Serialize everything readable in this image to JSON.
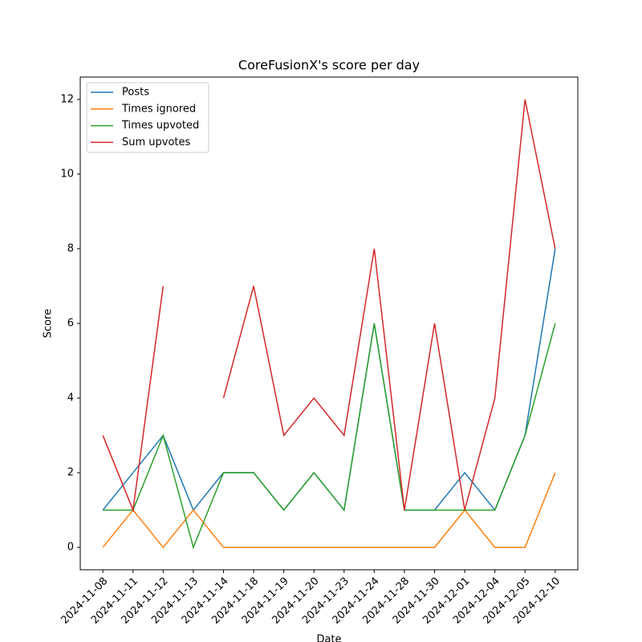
{
  "chart_data": {
    "type": "line",
    "title": "CoreFusionX's score per day",
    "x_label": "Date",
    "y_label": "Score",
    "categories": [
      "2024-11-08",
      "2024-11-11",
      "2024-11-12",
      "2024-11-13",
      "2024-11-14",
      "2024-11-18",
      "2024-11-19",
      "2024-11-20",
      "2024-11-23",
      "2024-11-24",
      "2024-11-28",
      "2024-11-30",
      "2024-12-01",
      "2024-12-04",
      "2024-12-05",
      "2024-12-10"
    ],
    "series": [
      {
        "name": "Posts",
        "color": "#1f77b4",
        "values": [
          1,
          2,
          3,
          1,
          2,
          2,
          1,
          2,
          1,
          6,
          1,
          1,
          2,
          1,
          3,
          8
        ]
      },
      {
        "name": "Times ignored",
        "color": "#ff7f0e",
        "values": [
          0,
          1,
          0,
          1,
          0,
          0,
          0,
          0,
          0,
          0,
          0,
          0,
          1,
          0,
          0,
          2
        ]
      },
      {
        "name": "Times upvoted",
        "color": "#2ca02c",
        "values": [
          1,
          1,
          3,
          0,
          2,
          2,
          1,
          2,
          1,
          6,
          1,
          1,
          1,
          1,
          3,
          6
        ]
      },
      {
        "name": "Sum upvotes",
        "color": "#d62728",
        "values": [
          3,
          1,
          7,
          null,
          4,
          7,
          3,
          4,
          3,
          8,
          1,
          6,
          1,
          4,
          12,
          8
        ]
      }
    ],
    "ylim": [
      -0.6,
      12.6
    ],
    "yticks": [
      0,
      2,
      4,
      6,
      8,
      10,
      12
    ],
    "legend": "upper left",
    "grid": false
  }
}
